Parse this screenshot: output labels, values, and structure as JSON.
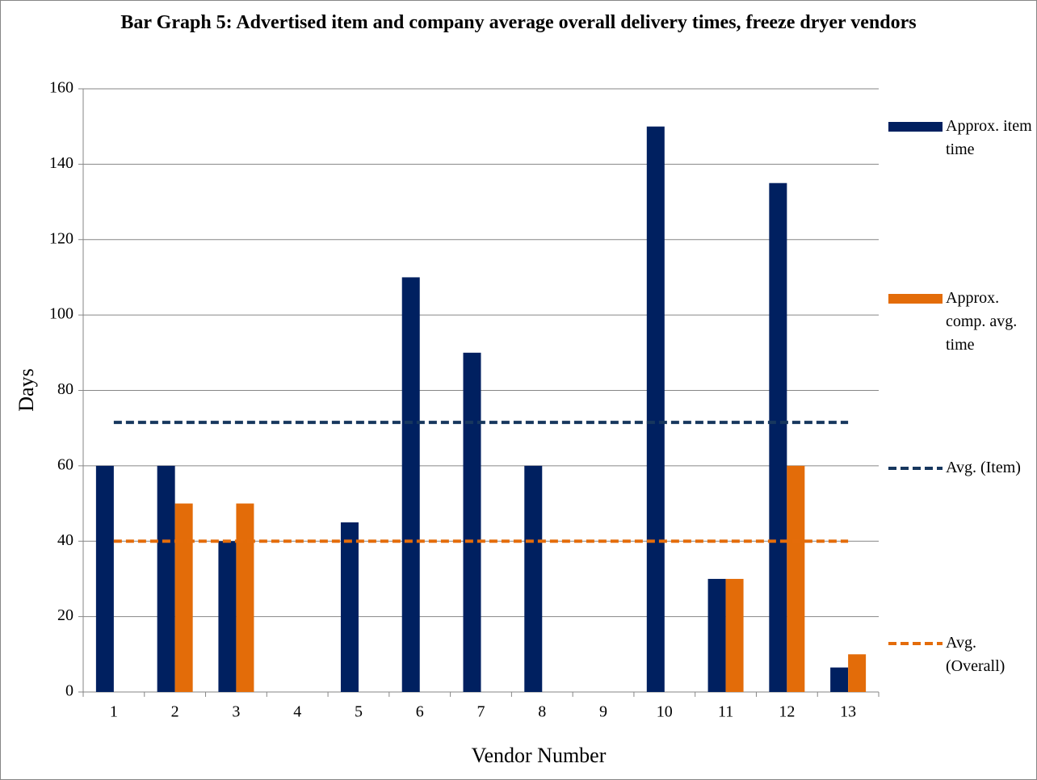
{
  "chart_data": {
    "type": "bar",
    "title": "Bar Graph 5: Advertised item and company average overall delivery times, freeze dryer vendors",
    "x_label": "Vendor Number",
    "y_label": "Days",
    "categories": [
      "1",
      "2",
      "3",
      "4",
      "5",
      "6",
      "7",
      "8",
      "9",
      "10",
      "11",
      "12",
      "13"
    ],
    "series": [
      {
        "name": "Approx. item time",
        "type": "bar",
        "color": "#002060",
        "values": [
          60,
          60,
          40,
          null,
          45,
          110,
          90,
          60,
          null,
          150,
          30,
          135,
          6.5
        ]
      },
      {
        "name": "Approx. comp. avg. time",
        "type": "bar",
        "color": "#e36c09",
        "values": [
          null,
          50,
          50,
          null,
          null,
          null,
          null,
          null,
          null,
          null,
          30,
          60,
          10
        ]
      },
      {
        "name": "Avg. (Item)",
        "type": "line",
        "color": "#17375e",
        "values": [
          71.5,
          71.5,
          71.5,
          71.5,
          71.5,
          71.5,
          71.5,
          71.5,
          71.5,
          71.5,
          71.5,
          71.5,
          71.5
        ]
      },
      {
        "name": "Avg. (Overall)",
        "type": "line",
        "color": "#e46c0a",
        "values": [
          40,
          40,
          40,
          40,
          40,
          40,
          40,
          40,
          40,
          40,
          40,
          40,
          40
        ]
      }
    ],
    "ylim": [
      0,
      160
    ],
    "yticks": [
      0,
      20,
      40,
      60,
      80,
      100,
      120,
      140,
      160
    ],
    "grid": true,
    "legend": "right"
  }
}
